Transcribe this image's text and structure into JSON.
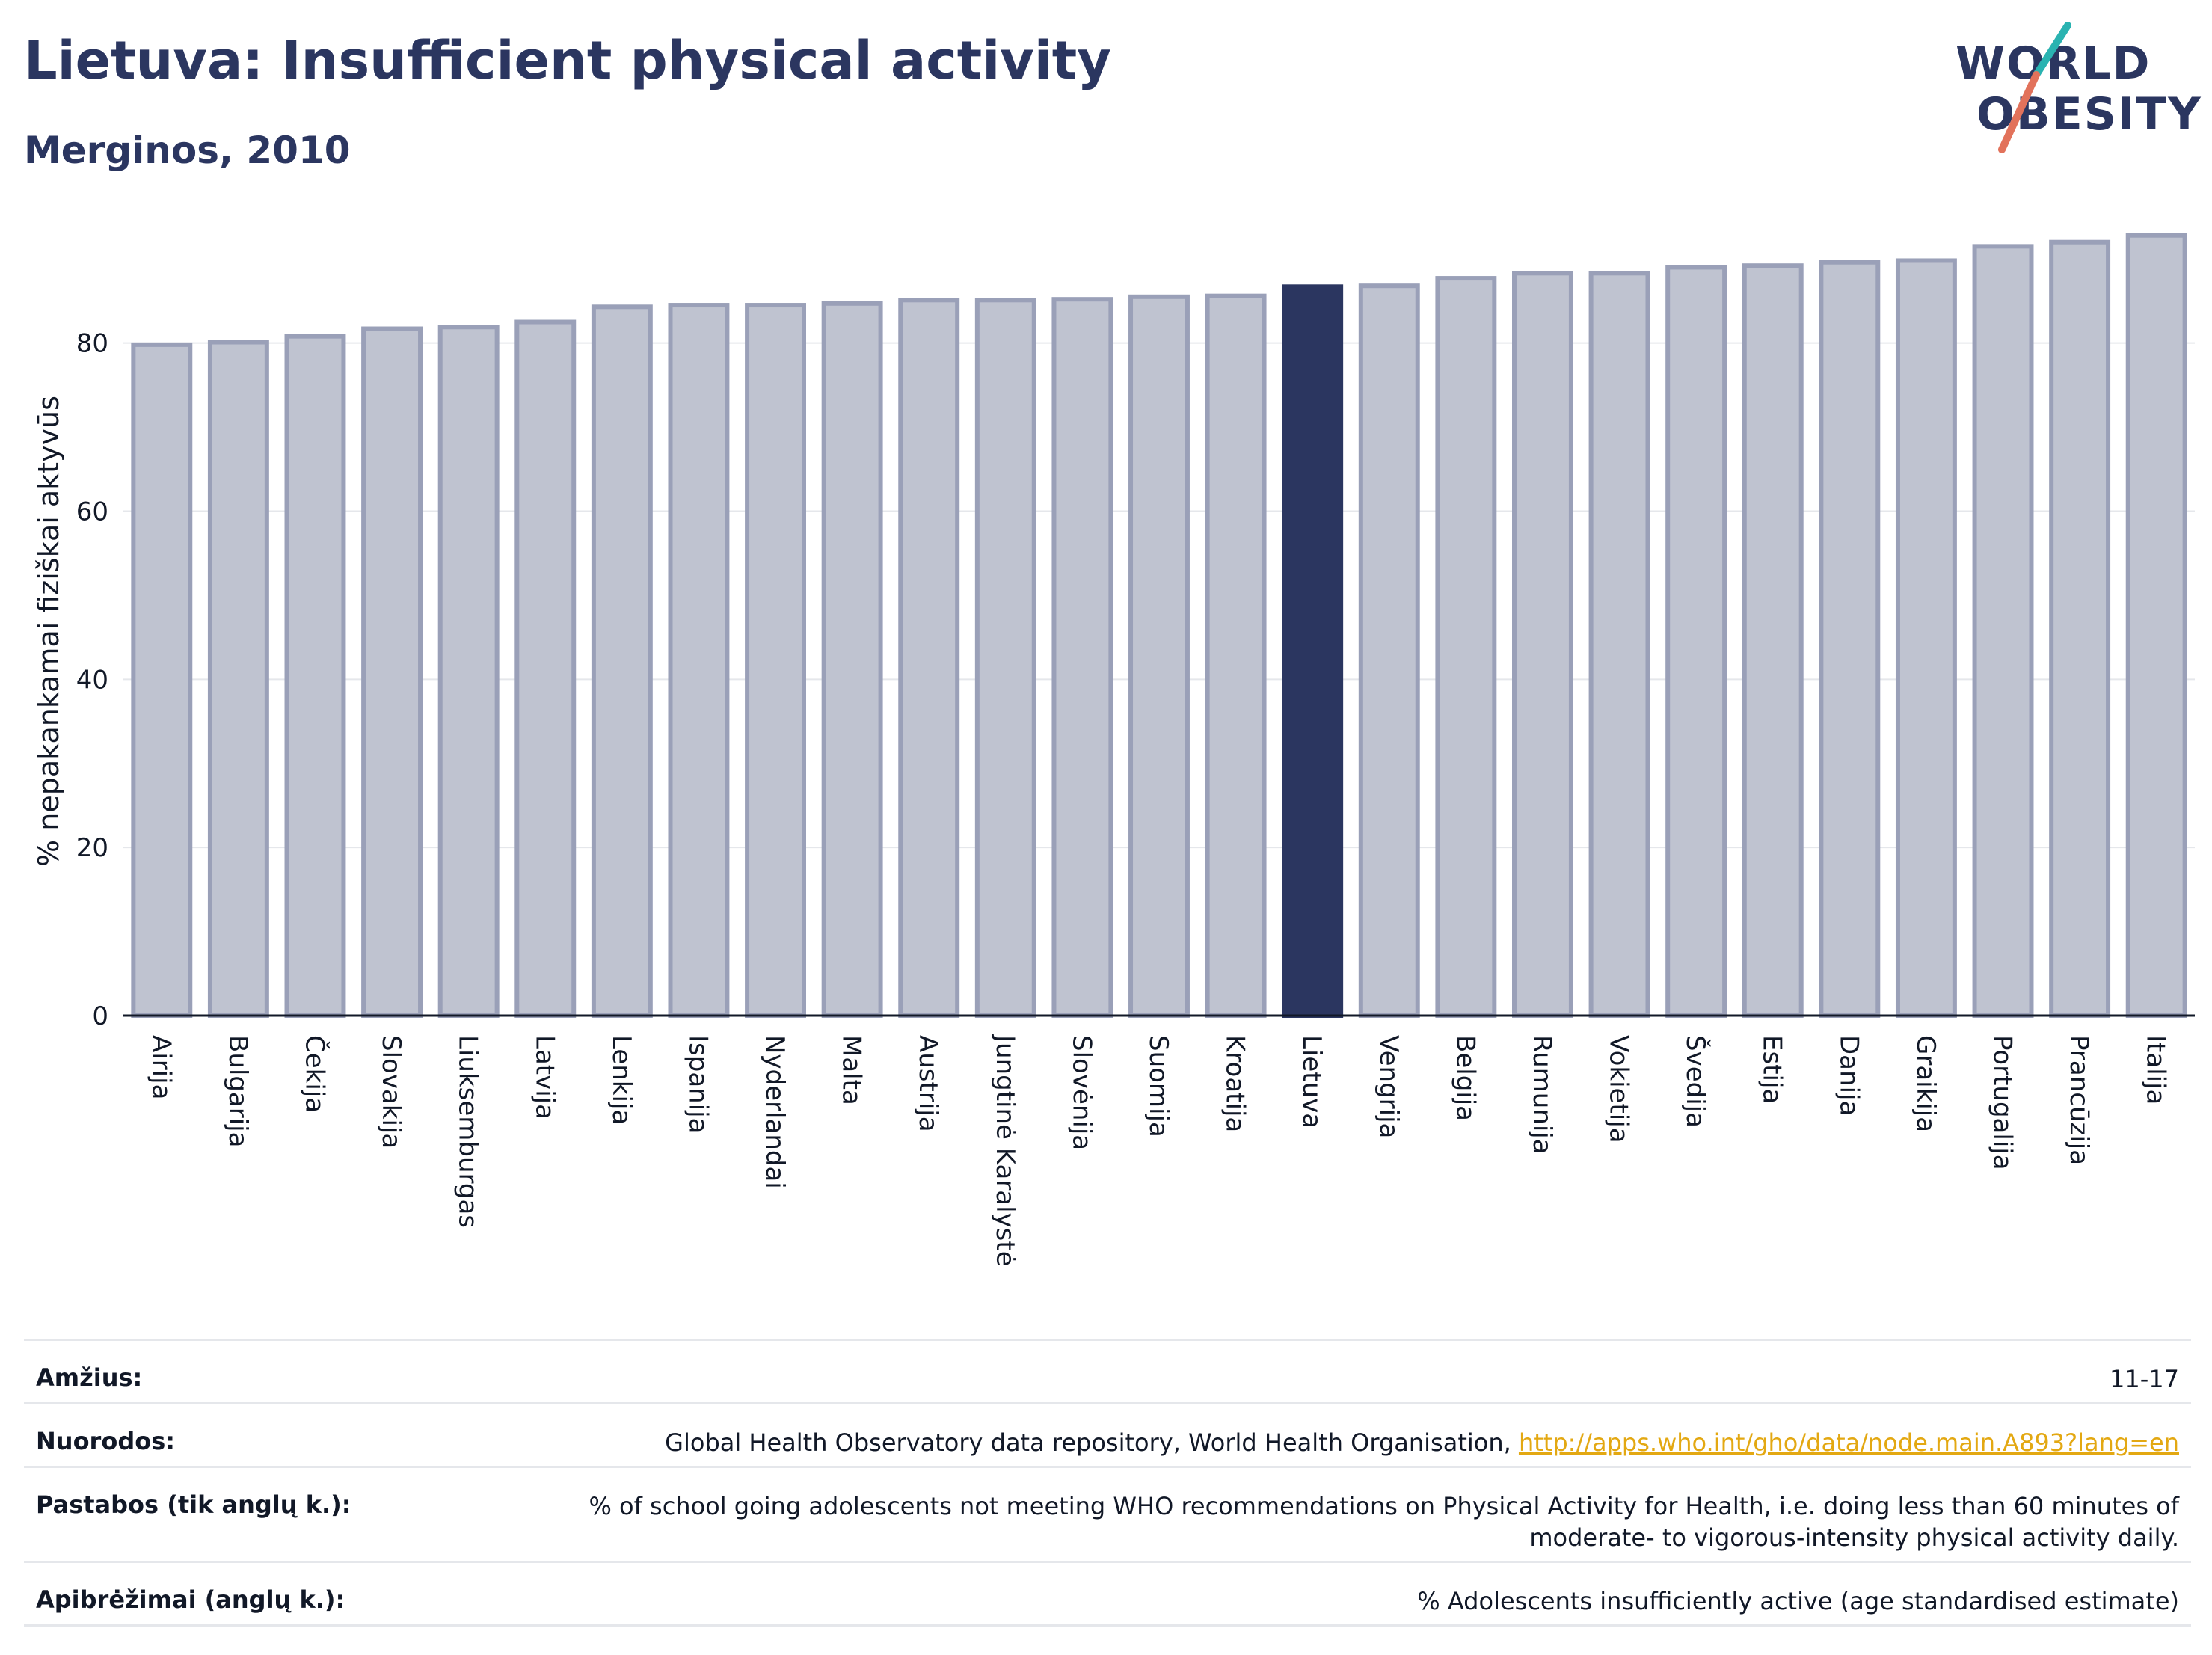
{
  "header": {
    "title": "Lietuva: Insufficient physical activity",
    "subtitle": "Merginos, 2010"
  },
  "logo": {
    "line1": "WORLD",
    "line2": "OBESITY",
    "colors": {
      "text": "#2b3660",
      "slash_teal": "#2ab3b1",
      "slash_red": "#e2725b"
    }
  },
  "chart_data": {
    "type": "bar",
    "categories": [
      "Airija",
      "Bulgarija",
      "Čekija",
      "Slovakija",
      "Liuksemburgas",
      "Latvija",
      "Lenkija",
      "Ispanija",
      "Nyderlandai",
      "Malta",
      "Austrija",
      "Jungtinė Karalystė",
      "Slovėnija",
      "Suomija",
      "Kroatija",
      "Lietuva",
      "Vengrija",
      "Belgija",
      "Rumunija",
      "Vokietija",
      "Švedija",
      "Estija",
      "Danija",
      "Graikija",
      "Portugalija",
      "Prancūzija",
      "Italija"
    ],
    "values": [
      79.8,
      80.1,
      80.8,
      81.7,
      81.9,
      82.5,
      84.3,
      84.5,
      84.5,
      84.7,
      85.1,
      85.1,
      85.2,
      85.5,
      85.6,
      86.7,
      86.8,
      87.7,
      88.3,
      88.3,
      89.0,
      89.2,
      89.6,
      89.8,
      91.5,
      92.0,
      92.8
    ],
    "highlight": "Lietuva",
    "ylabel": "% nepakankamai fiziškai aktyvūs",
    "xlabel": "",
    "ylim": [
      0,
      95
    ],
    "yticks": [
      0,
      20,
      40,
      60,
      80
    ],
    "grid": true,
    "colors": {
      "bar": "#bfc3d0",
      "bar_edge": "#9aa0b8",
      "highlight": "#2b3660",
      "axis": "#111827",
      "grid": "#e5e7eb"
    }
  },
  "meta": {
    "rows": [
      {
        "label": "Amžius:",
        "value": "11-17"
      },
      {
        "label": "Nuorodos:",
        "value": "Global Health Observatory data repository, World Health Organisation,",
        "link": "http://apps.who.int/gho/data/node.main.A893?lang=en"
      },
      {
        "label": "Pastabos (tik anglų k.):",
        "value_line1": "% of school going adolescents not meeting WHO recommendations on Physical Activity for Health, i.e. doing less than 60 minutes of",
        "value_line2": "moderate- to vigorous-intensity physical activity daily."
      },
      {
        "label": "Apibrėžimai (anglų k.):",
        "value": "% Adolescents insufficiently active (age standardised estimate)"
      }
    ]
  }
}
